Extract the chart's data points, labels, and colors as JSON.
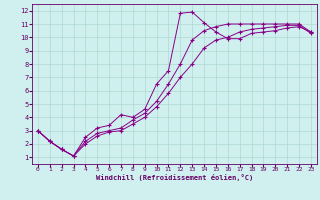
{
  "xlabel": "Windchill (Refroidissement éolien,°C)",
  "background_color": "#cff0ee",
  "grid_color": "#b0d8d4",
  "line_color": "#880088",
  "xlim": [
    -0.5,
    23.5
  ],
  "ylim": [
    0.5,
    12.5
  ],
  "xticks": [
    0,
    1,
    2,
    3,
    4,
    5,
    6,
    7,
    8,
    9,
    10,
    11,
    12,
    13,
    14,
    15,
    16,
    17,
    18,
    19,
    20,
    21,
    22,
    23
  ],
  "yticks": [
    1,
    2,
    3,
    4,
    5,
    6,
    7,
    8,
    9,
    10,
    11,
    12
  ],
  "line1_x": [
    0,
    1,
    2,
    3,
    4,
    5,
    6,
    7,
    8,
    9,
    10,
    11,
    12,
    13,
    14,
    15,
    16,
    17,
    18,
    19,
    20,
    21,
    22,
    23
  ],
  "line1_y": [
    3.0,
    2.2,
    1.6,
    1.1,
    2.2,
    2.8,
    3.0,
    3.2,
    3.8,
    4.3,
    5.2,
    6.5,
    8.0,
    9.8,
    10.5,
    10.8,
    11.0,
    11.0,
    11.0,
    11.0,
    11.0,
    11.0,
    11.0,
    10.4
  ],
  "line2_x": [
    0,
    1,
    2,
    3,
    4,
    5,
    6,
    7,
    8,
    9,
    10,
    11,
    12,
    13,
    14,
    15,
    16,
    17,
    18,
    19,
    20,
    21,
    22,
    23
  ],
  "line2_y": [
    3.0,
    2.2,
    1.6,
    1.1,
    2.5,
    3.2,
    3.4,
    4.2,
    4.0,
    4.6,
    6.5,
    7.5,
    11.8,
    11.9,
    11.1,
    10.4,
    9.9,
    9.9,
    10.3,
    10.4,
    10.5,
    10.7,
    10.8,
    10.4
  ],
  "line3_x": [
    0,
    1,
    2,
    3,
    4,
    5,
    6,
    7,
    8,
    9,
    10,
    11,
    12,
    13,
    14,
    15,
    16,
    17,
    18,
    19,
    20,
    21,
    22,
    23
  ],
  "line3_y": [
    3.0,
    2.2,
    1.6,
    1.1,
    2.0,
    2.6,
    2.9,
    3.0,
    3.5,
    4.0,
    4.8,
    5.8,
    7.0,
    8.0,
    9.2,
    9.8,
    10.0,
    10.4,
    10.6,
    10.7,
    10.8,
    10.9,
    10.9,
    10.3
  ]
}
